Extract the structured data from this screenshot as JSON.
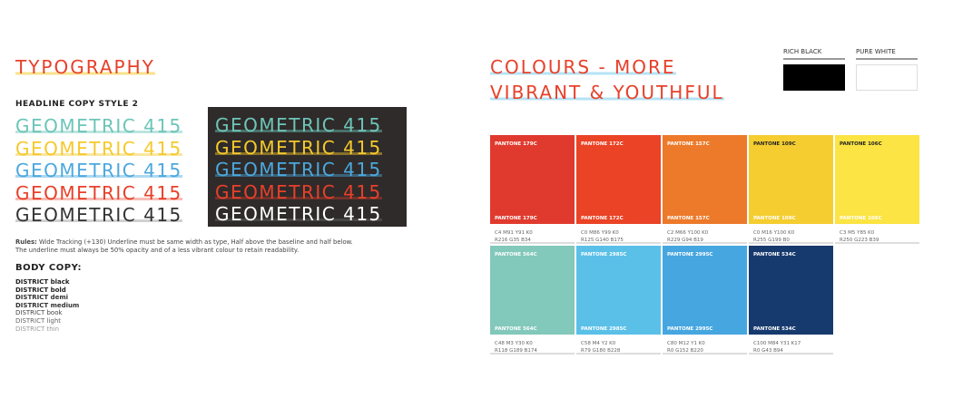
{
  "typography": {
    "title": "TYPOGRAPHY",
    "subtitle": "HEADLINE COPY STYLE 2",
    "samples": [
      {
        "text": "GEOMETRIC 415",
        "color": "#6cc5b8"
      },
      {
        "text": "GEOMETRIC 415",
        "color": "#f5c92c"
      },
      {
        "text": "GEOMETRIC 415",
        "color": "#4ba8de"
      },
      {
        "text": "GEOMETRIC 415",
        "color": "#e8402a"
      },
      {
        "text": "GEOMETRIC 415",
        "color": "#333333"
      }
    ],
    "dark_samples_last_color": "#ffffff",
    "rules_label": "Rules:",
    "rules_line1": " Wide Tracking (+130) Underline must be same width as type, Half above the baseline and half below.",
    "rules_line2": "The underline must always be 50% opacity and of a less vibrant colour to retain readability.",
    "body_title": "BODY COPY:",
    "body_weights": [
      "DISTRICT black",
      "DISTRICT bold",
      "DISTRICT demi",
      "DISTRICT medium",
      "DISTRICT book",
      "DISTRICT light",
      "DISTRICT thin"
    ]
  },
  "colours": {
    "title_line1": "COLOURS - MORE",
    "title_line2": "VIBRANT & YOUTHFUL",
    "rich_black": {
      "label": "RICH BLACK",
      "color": "#000000"
    },
    "pure_white": {
      "label": "PURE WHITE",
      "color": "#ffffff"
    },
    "swatches": [
      {
        "name": "PANTONE 179C",
        "color": "#e03a2e",
        "cmyk": "C4  M91  Y91  K0",
        "rgb": "R216 G35  B34"
      },
      {
        "name": "PANTONE 172C",
        "color": "#ea4325",
        "cmyk": "C0  M86  Y99  K0",
        "rgb": "R125 G140  B175"
      },
      {
        "name": "PANTONE 157C",
        "color": "#ec7a2a",
        "cmyk": "C2  M66  Y100  K0",
        "rgb": "R229 G94  B19"
      },
      {
        "name": "PANTONE 109C",
        "color": "#f5cd30",
        "cmyk": "C0  M16  Y100  K0",
        "rgb": "R255 G199  B0"
      },
      {
        "name": "PANTONE 106C",
        "color": "#fbe443",
        "cmyk": "C3  M5  Y85  K0",
        "rgb": "R250 G223  B39"
      },
      {
        "name": "PANTONE 564C",
        "color": "#82c8bb",
        "cmyk": "C48  M3  Y30  K0",
        "rgb": "R118 G189  B174"
      },
      {
        "name": "PANTONE 2985C",
        "color": "#5ac0e8",
        "cmyk": "C58  M4  Y2  K0",
        "rgb": "R79 G180  B228"
      },
      {
        "name": "PANTONE 2995C",
        "color": "#46a6e0",
        "cmyk": "C80  M12  Y1  K0",
        "rgb": "R0 G152  B220"
      },
      {
        "name": "PANTONE 534C",
        "color": "#173a6e",
        "cmyk": "C100  M84  Y31  K17",
        "rgb": "R0 G43  B94"
      }
    ]
  }
}
